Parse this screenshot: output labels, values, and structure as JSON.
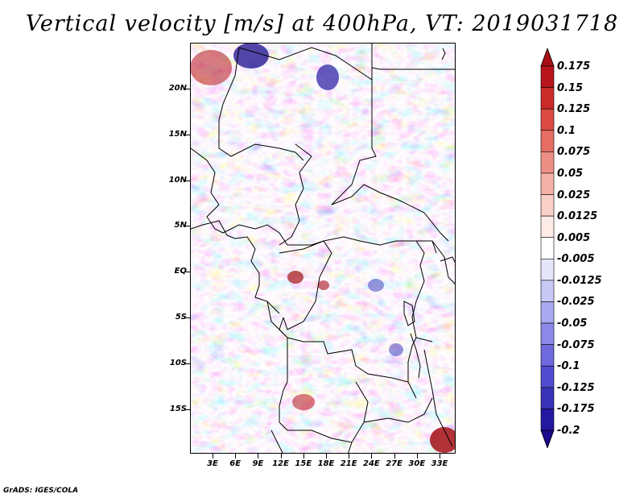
{
  "title": "Vertical velocity [m/s] at 400hPa, VT: 2019031718",
  "footer": "GrADS: IGES/COLA",
  "map": {
    "lat_labels": [
      "20N",
      "15N",
      "10N",
      "5N",
      "EQ",
      "5S",
      "10S",
      "15S"
    ],
    "lon_labels": [
      "3E",
      "6E",
      "9E",
      "12E",
      "15E",
      "18E",
      "21E",
      "24E",
      "27E",
      "30E",
      "33E"
    ]
  },
  "colorbar": {
    "labels": [
      "0.175",
      "0.15",
      "0.125",
      "0.1",
      "0.075",
      "0.05",
      "0.025",
      "0.0125",
      "0.005",
      "-0.005",
      "-0.0125",
      "-0.025",
      "-0.05",
      "-0.075",
      "-0.1",
      "-0.125",
      "-0.175",
      "-0.2"
    ],
    "colors": [
      "#a50f15",
      "#b8141c",
      "#cb2a2a",
      "#db4a43",
      "#e56d63",
      "#ee8f85",
      "#f4b1a8",
      "#f9d0c8",
      "#fcebe6",
      "#ffffff",
      "#e6e6fa",
      "#c8c8f5",
      "#aaa8f0",
      "#8c88e8",
      "#6e69dd",
      "#514ccf",
      "#3a33b8",
      "#2418a0",
      "#1a0a8c"
    ]
  }
}
